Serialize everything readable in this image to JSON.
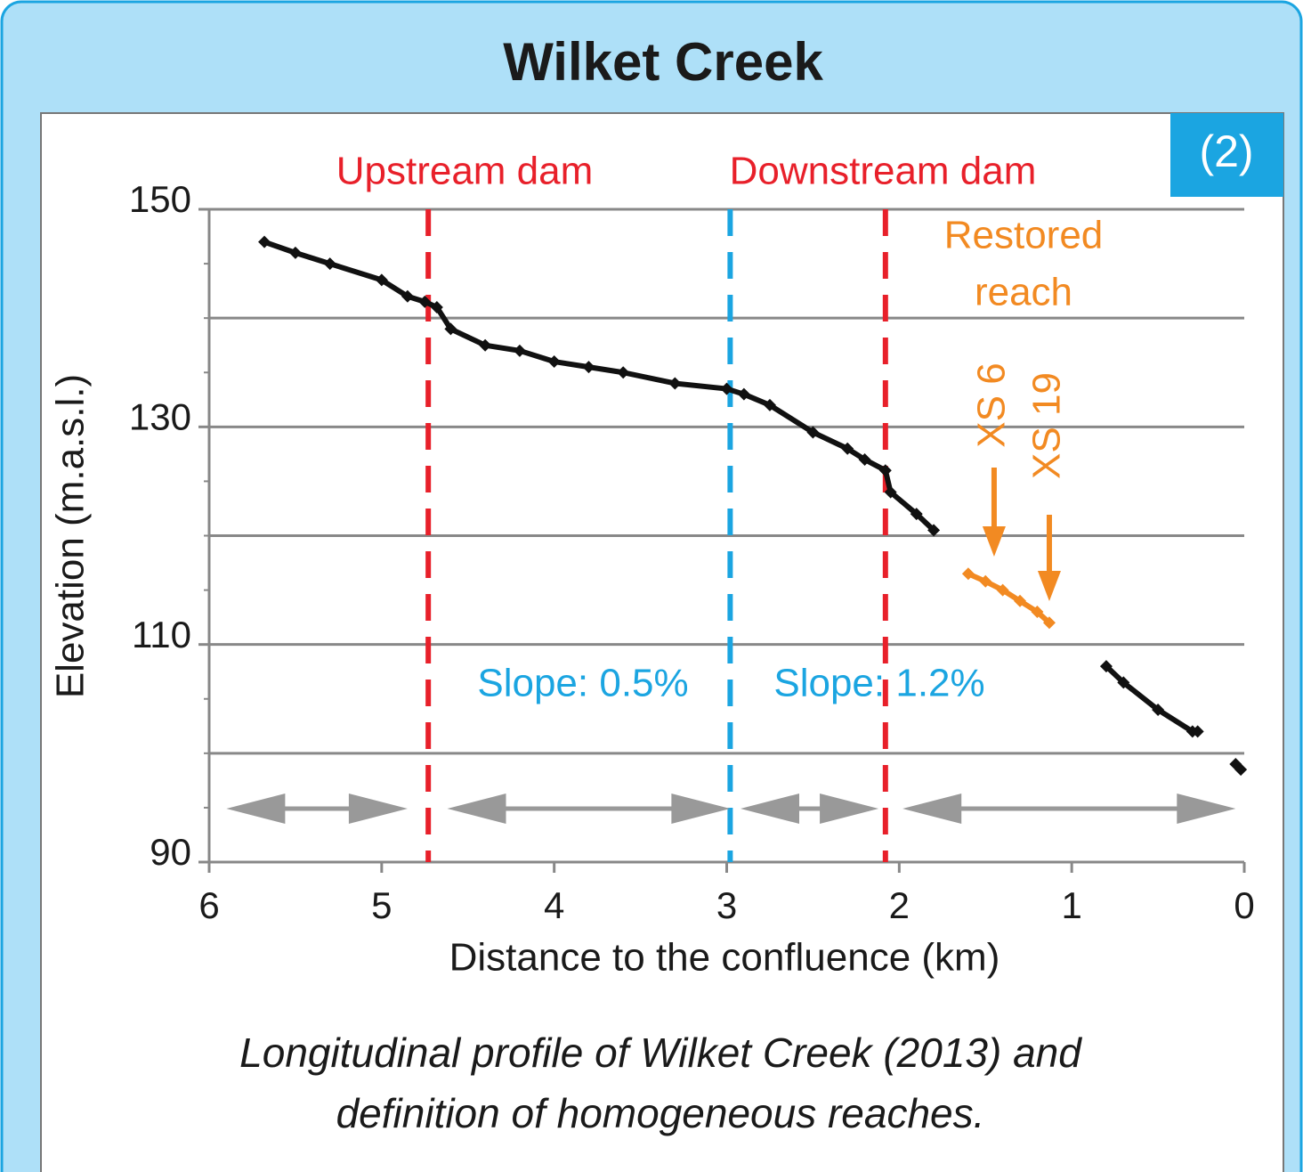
{
  "chart_data": {
    "type": "line",
    "title": "Wilket Creek",
    "badge": "(2)",
    "x_label": "Distance to the confluence (km)",
    "y_label": "Elevation (m.a.s.l.)",
    "xlim": [
      6,
      0
    ],
    "ylim": [
      90,
      150
    ],
    "xticks": [
      6,
      5,
      4,
      3,
      2,
      1,
      0
    ],
    "yticks": [
      90,
      110,
      130,
      150
    ],
    "y_gridlines": [
      100,
      110,
      120,
      130,
      140,
      150
    ],
    "y_minor_ticks": [
      95,
      100,
      105,
      115,
      120,
      125,
      135,
      140,
      145
    ],
    "series": [
      {
        "name": "Profile",
        "color": "#111111",
        "x": [
          5.68,
          5.5,
          5.3,
          5.0,
          4.85,
          4.75,
          4.68,
          4.6,
          4.4,
          4.2,
          4.0,
          3.8,
          3.6,
          3.3,
          3.0,
          2.9,
          2.75,
          2.5,
          2.3,
          2.2,
          2.08,
          2.05,
          1.9,
          1.8,
          1.3,
          0.8,
          0.7,
          0.5,
          0.3,
          0.27,
          0.15,
          0.05,
          0.02
        ],
        "values": [
          147,
          146,
          145,
          143.5,
          142,
          141.5,
          141,
          139,
          137.5,
          137,
          136,
          135.5,
          135,
          134,
          133.5,
          133,
          132,
          129.5,
          128,
          127,
          126,
          124,
          122,
          120.5,
          null,
          108,
          106.5,
          104,
          102,
          102,
          null,
          99,
          98.5
        ]
      },
      {
        "name": "Restored reach",
        "color": "#f28a22",
        "x": [
          1.6,
          1.5,
          1.4,
          1.3,
          1.2,
          1.13
        ],
        "values": [
          116.5,
          115.8,
          115,
          114,
          113,
          112
        ]
      }
    ],
    "vlines": [
      {
        "x": 4.73,
        "color": "#e8202a",
        "label": "Upstream dam"
      },
      {
        "x": 2.98,
        "color": "#1ba5e1"
      },
      {
        "x": 2.08,
        "color": "#e8202a",
        "label": "Downstream dam"
      }
    ],
    "slope_labels": [
      "Slope: 0.5%",
      "Slope: 1.2%"
    ],
    "restored_label": [
      "Restored",
      "reach"
    ],
    "xs_arrows": [
      {
        "x": 1.45,
        "label": "XS 6"
      },
      {
        "x": 1.13,
        "label": "XS 19"
      }
    ],
    "reaches": [
      [
        5.9,
        4.85
      ],
      [
        4.62,
        2.98
      ],
      [
        2.92,
        2.12
      ],
      [
        1.98,
        0.05
      ]
    ],
    "caption": [
      "Longitudinal profile of Wilket Creek (2013) and",
      "definition of homogeneous reaches."
    ]
  }
}
